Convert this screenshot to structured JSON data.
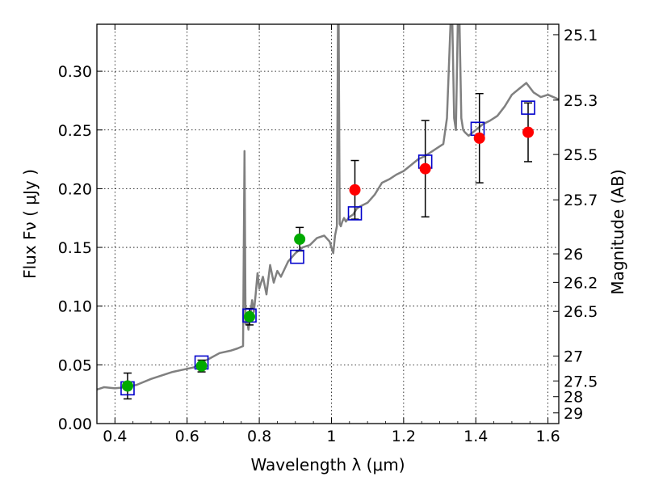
{
  "chart_data": {
    "type": "scatter",
    "xlabel": "Wavelength  λ (μm)",
    "ylabel": "Flux  Fν ( μJy )",
    "y2label": "Magnitude (AB)",
    "xlim": [
      0.35,
      1.63
    ],
    "ylim": [
      0.0,
      0.34
    ],
    "grid": true,
    "x_ticks": [
      0.4,
      0.6,
      0.8,
      1.0,
      1.2,
      1.4,
      1.6
    ],
    "x_tick_labels": [
      "0.4",
      "0.6",
      "0.8",
      "1",
      "1.2",
      "1.4",
      "1.6"
    ],
    "y_ticks": [
      0.0,
      0.05,
      0.1,
      0.15,
      0.2,
      0.25,
      0.3
    ],
    "y_tick_labels": [
      "0.00",
      "0.05",
      "0.10",
      "0.15",
      "0.20",
      "0.25",
      "0.30"
    ],
    "y2_ticks": [
      {
        "flux": 0.3311,
        "label": "25.1"
      },
      {
        "flux": 0.2754,
        "label": "25.3"
      },
      {
        "flux": 0.2291,
        "label": "25.5"
      },
      {
        "flux": 0.1905,
        "label": "25.7"
      },
      {
        "flux": 0.1445,
        "label": "26"
      },
      {
        "flux": 0.1202,
        "label": "26.2"
      },
      {
        "flux": 0.0955,
        "label": "26.5"
      },
      {
        "flux": 0.0575,
        "label": "27"
      },
      {
        "flux": 0.0363,
        "label": "27.5"
      },
      {
        "flux": 0.0229,
        "label": "28"
      },
      {
        "flux": 0.0091,
        "label": "29"
      }
    ],
    "series": [
      {
        "kind": "line",
        "color": "#808080",
        "x": [
          0.35,
          0.37,
          0.4,
          0.43,
          0.46,
          0.5,
          0.53,
          0.56,
          0.59,
          0.62,
          0.64,
          0.66,
          0.69,
          0.72,
          0.74,
          0.755,
          0.759,
          0.762,
          0.765,
          0.77,
          0.775,
          0.78,
          0.785,
          0.79,
          0.795,
          0.8,
          0.81,
          0.82,
          0.83,
          0.84,
          0.85,
          0.86,
          0.88,
          0.9,
          0.92,
          0.94,
          0.96,
          0.98,
          0.995,
          1.0,
          1.005,
          1.01,
          1.015,
          1.018,
          1.02,
          1.023,
          1.026,
          1.03,
          1.035,
          1.04,
          1.05,
          1.06,
          1.07,
          1.08,
          1.1,
          1.12,
          1.14,
          1.16,
          1.18,
          1.2,
          1.22,
          1.24,
          1.26,
          1.28,
          1.3,
          1.31,
          1.32,
          1.33,
          1.335,
          1.34,
          1.345,
          1.35,
          1.355,
          1.36,
          1.365,
          1.37,
          1.38,
          1.4,
          1.42,
          1.44,
          1.46,
          1.48,
          1.5,
          1.52,
          1.54,
          1.56,
          1.58,
          1.6,
          1.63
        ],
        "y": [
          0.029,
          0.031,
          0.03,
          0.031,
          0.033,
          0.038,
          0.041,
          0.044,
          0.046,
          0.048,
          0.052,
          0.055,
          0.06,
          0.062,
          0.064,
          0.066,
          0.232,
          0.085,
          0.09,
          0.08,
          0.092,
          0.105,
          0.095,
          0.11,
          0.128,
          0.115,
          0.125,
          0.11,
          0.135,
          0.12,
          0.13,
          0.125,
          0.138,
          0.145,
          0.15,
          0.152,
          0.158,
          0.16,
          0.155,
          0.15,
          0.145,
          0.16,
          0.168,
          0.34,
          0.34,
          0.17,
          0.168,
          0.172,
          0.175,
          0.172,
          0.176,
          0.178,
          0.183,
          0.185,
          0.188,
          0.195,
          0.205,
          0.208,
          0.212,
          0.215,
          0.22,
          0.225,
          0.228,
          0.232,
          0.236,
          0.238,
          0.26,
          0.34,
          0.34,
          0.26,
          0.25,
          0.34,
          0.34,
          0.26,
          0.25,
          0.248,
          0.245,
          0.25,
          0.255,
          0.258,
          0.262,
          0.27,
          0.28,
          0.285,
          0.29,
          0.282,
          0.278,
          0.28,
          0.276
        ]
      },
      {
        "kind": "open-square",
        "color": "#0000cc",
        "x": [
          0.435,
          0.64,
          0.773,
          0.905,
          1.065,
          1.26,
          1.405,
          1.545
        ],
        "y": [
          0.03,
          0.052,
          0.092,
          0.142,
          0.179,
          0.223,
          0.251,
          0.269
        ]
      },
      {
        "kind": "filled-circle",
        "color": "#00aa00",
        "x": [
          0.435,
          0.64,
          0.773,
          0.912
        ],
        "y": [
          0.032,
          0.049,
          0.091,
          0.157
        ],
        "err": [
          0.011,
          0.005,
          0.007,
          0.01
        ]
      },
      {
        "kind": "filled-circle",
        "color": "#ff0000",
        "x": [
          1.065,
          1.26,
          1.41,
          1.545
        ],
        "y": [
          0.199,
          0.217,
          0.243,
          0.248
        ],
        "err": [
          0.025,
          0.041,
          0.038,
          0.025
        ]
      }
    ]
  }
}
